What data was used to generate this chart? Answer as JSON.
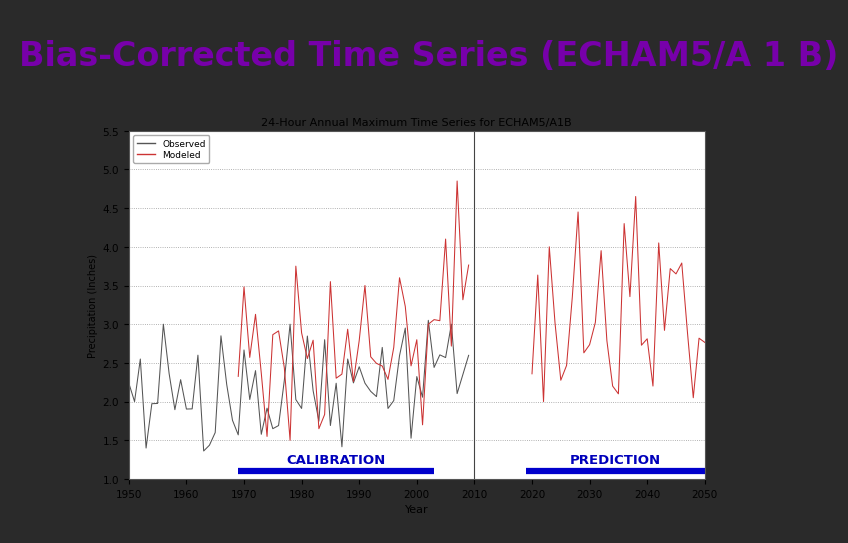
{
  "chart_title": "24-Hour Annual Maximum Time Series for ECHAM5/A1B",
  "xlabel": "Year",
  "ylabel": "Precipitation (Inches)",
  "ylim": [
    1.0,
    5.5
  ],
  "xlim": [
    1950,
    2050
  ],
  "yticks": [
    1.0,
    1.5,
    2.0,
    2.5,
    3.0,
    3.5,
    4.0,
    4.5,
    5.0,
    5.5
  ],
  "xticks": [
    1950,
    1960,
    1970,
    1980,
    1990,
    2000,
    2010,
    2020,
    2030,
    2040,
    2050
  ],
  "observed_color": "#555555",
  "modeled_color": "#cc3333",
  "calib_bar_color": "#0000cc",
  "pred_bar_color": "#0000cc",
  "calibration_label": "CALIBRATION",
  "prediction_label": "PREDICTION",
  "calib_x_start": 1969,
  "calib_x_end": 2003,
  "pred_x_start": 2019,
  "pred_x_end": 2050,
  "split_year": 2010,
  "outer_bg": "#2a2a2a",
  "inner_bg": "#ffffff",
  "slide_bg": "#ffffff",
  "title_color": "#7700aa",
  "label_color": "#0000bb",
  "header_line_color": "#8899bb",
  "title_text": "Bias-Corrected Time Series (ECHAM5/A 1 B)",
  "title_fontsize": 24,
  "seed_observed": 42,
  "seed_modeled": 99
}
